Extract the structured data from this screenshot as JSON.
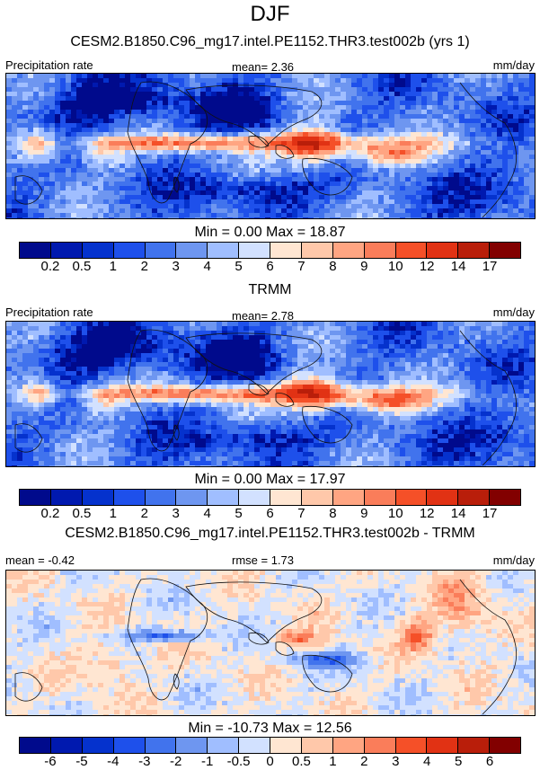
{
  "title": "DJF",
  "colors": [
    "#000a8c",
    "#0019af",
    "#0532cd",
    "#1e50eb",
    "#4173ed",
    "#6e96f0",
    "#a0beff",
    "#d2e1ff",
    "#ffe6d2",
    "#ffc8aa",
    "#ffa582",
    "#fa7d5a",
    "#f55028",
    "#e13214",
    "#b91e0a",
    "#820000"
  ],
  "panels": [
    {
      "title": "CESM2.B1850.C96_mg17.intel.PE1152.THR3.test002b (yrs 1)",
      "left_label": "Precipitation rate",
      "center_label": "mean=   2.36",
      "right_label": "mm/day",
      "minmax": "Min =   0.00 Max =  18.87",
      "ticks": [
        "0.2",
        "0.5",
        "1",
        "2",
        "3",
        "4",
        "5",
        "6",
        "7",
        "8",
        "9",
        "10",
        "12",
        "14",
        "17"
      ]
    },
    {
      "title": "TRMM",
      "left_label": "Precipitation rate",
      "center_label": "mean=   2.78",
      "right_label": "mm/day",
      "minmax": "Min =   0.00 Max =  17.97",
      "ticks": [
        "0.2",
        "0.5",
        "1",
        "2",
        "3",
        "4",
        "5",
        "6",
        "7",
        "8",
        "9",
        "10",
        "12",
        "14",
        "17"
      ]
    },
    {
      "title": "CESM2.B1850.C96_mg17.intel.PE1152.THR3.test002b - TRMM",
      "left_label": "mean =  -0.42",
      "center_label": "rmse =   1.73",
      "right_label": "mm/day",
      "minmax": "Min = -10.73 Max =  12.56",
      "ticks": [
        "-6",
        "-5",
        "-4",
        "-3",
        "-2",
        "-1",
        "-0.5",
        "0",
        "0.5",
        "1",
        "2",
        "3",
        "4",
        "5",
        "6"
      ]
    }
  ]
}
